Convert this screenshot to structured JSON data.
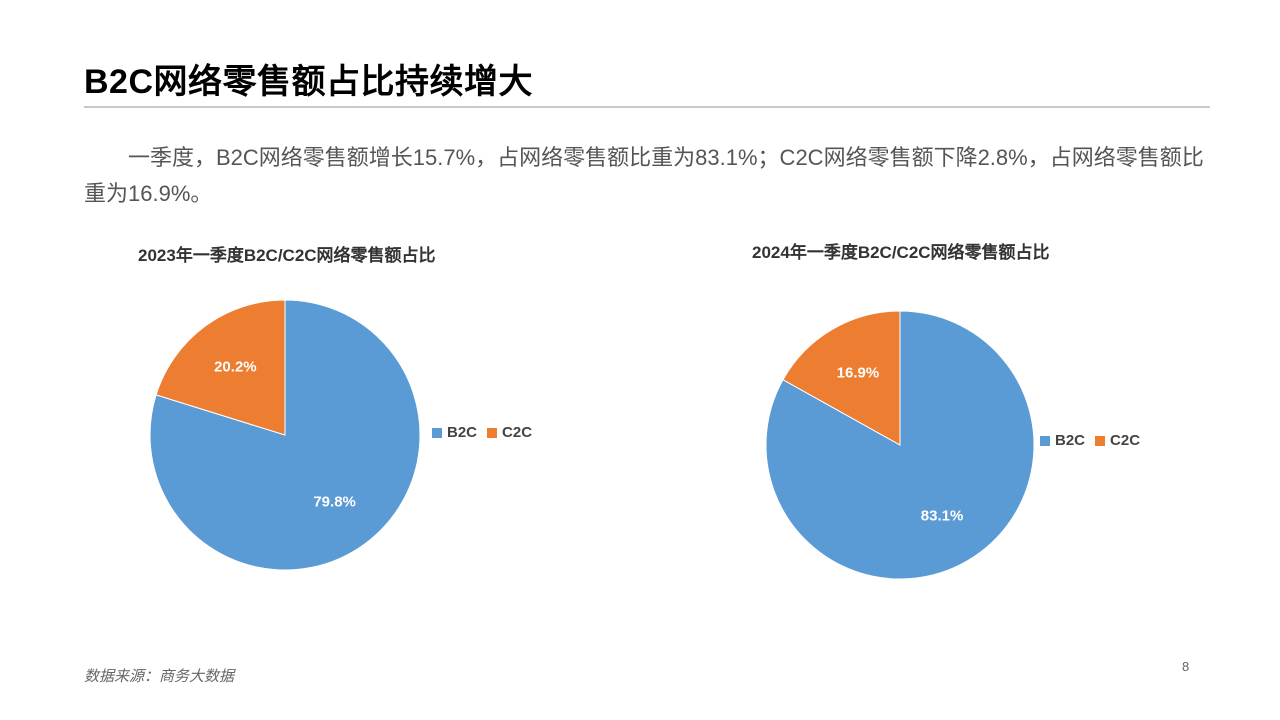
{
  "slide": {
    "title": "B2C网络零售额占比持续增大",
    "summary": "一季度，B2C网络零售额增长15.7%，占网络零售额比重为83.1%；C2C网络零售额下降2.8%，占网络零售额比重为16.9%。",
    "source": "数据来源：商务大数据",
    "page_number": "8"
  },
  "chart_data": [
    {
      "type": "pie",
      "title": "2023年一季度B2C/C2C网络零售额占比",
      "legend_position": "right",
      "series": [
        {
          "name": "B2C",
          "value": 79.8,
          "label": "79.8%",
          "color": "#5b9bd5"
        },
        {
          "name": "C2C",
          "value": 20.2,
          "label": "20.2%",
          "color": "#ed7d31"
        }
      ]
    },
    {
      "type": "pie",
      "title": "2024年一季度B2C/C2C网络零售额占比",
      "legend_position": "right",
      "series": [
        {
          "name": "B2C",
          "value": 83.1,
          "label": "83.1%",
          "color": "#5b9bd5"
        },
        {
          "name": "C2C",
          "value": 16.9,
          "label": "16.9%",
          "color": "#ed7d31"
        }
      ]
    }
  ]
}
